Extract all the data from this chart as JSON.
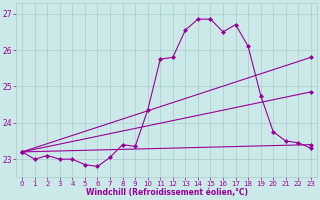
{
  "x": [
    0,
    1,
    2,
    3,
    4,
    5,
    6,
    7,
    8,
    9,
    10,
    11,
    12,
    13,
    14,
    15,
    16,
    17,
    18,
    19,
    20,
    21,
    22,
    23
  ],
  "line_jagged": [
    23.2,
    23.0,
    23.1,
    23.0,
    23.0,
    22.85,
    22.8,
    23.05,
    23.4,
    23.35,
    24.35,
    25.75,
    25.8,
    26.55,
    26.85,
    26.85,
    26.5,
    26.7,
    26.1,
    24.75,
    23.75,
    23.5,
    23.45,
    23.3
  ],
  "line2": [
    [
      0,
      23.2
    ],
    [
      23,
      25.8
    ]
  ],
  "line3": [
    [
      0,
      23.2
    ],
    [
      23,
      24.85
    ]
  ],
  "line4": [
    [
      0,
      23.2
    ],
    [
      23,
      23.4
    ]
  ],
  "background_color": "#cce9e9",
  "grid_color": "#aacccc",
  "line_color": "#990099",
  "xlabel": "Windchill (Refroidissement éolien,°C)",
  "ylim": [
    22.5,
    27.3
  ],
  "xlim": [
    -0.5,
    23.5
  ],
  "yticks": [
    23,
    24,
    25,
    26,
    27
  ],
  "xticks": [
    0,
    1,
    2,
    3,
    4,
    5,
    6,
    7,
    8,
    9,
    10,
    11,
    12,
    13,
    14,
    15,
    16,
    17,
    18,
    19,
    20,
    21,
    22,
    23
  ],
  "marker": "D",
  "markersize": 2.0,
  "linewidth": 0.8,
  "tick_fontsize": 5.0,
  "xlabel_fontsize": 5.5
}
